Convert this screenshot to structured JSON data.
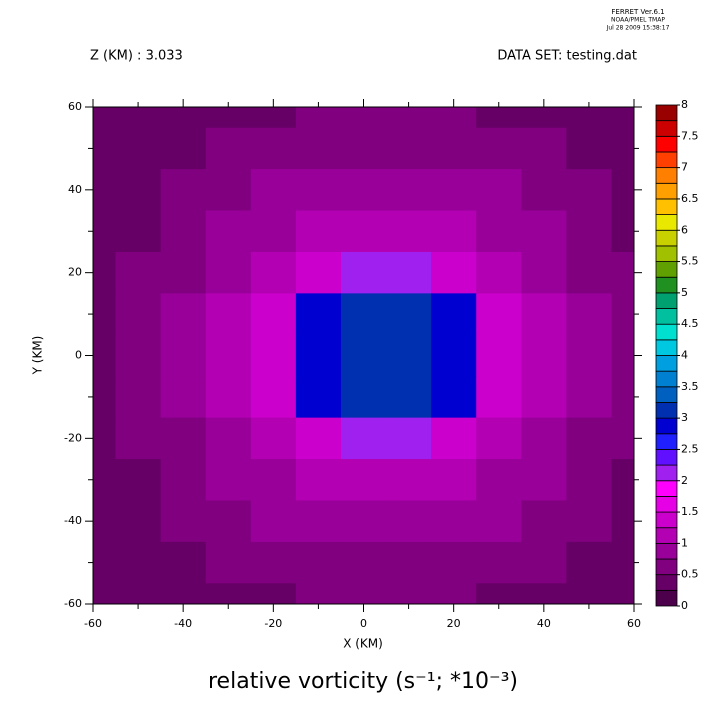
{
  "chart_data": {
    "type": "contour",
    "header": [
      "FERRET  Ver.6.1",
      "NOAA/PMEL TMAP",
      "Jul 28 2009 15:38:17"
    ],
    "subtitle_left": "Z (KM) : 3.033",
    "subtitle_right": "DATA SET: testing.dat",
    "title": "relative vorticity (s⁻¹; *10⁻³)",
    "x_label": "X (KM)",
    "y_label": "Y (KM)",
    "xlim": [
      -60,
      60
    ],
    "ylim": [
      -60,
      60
    ],
    "xticks": [
      -60,
      -40,
      -20,
      0,
      20,
      40,
      60
    ],
    "yticks": [
      -60,
      -40,
      -20,
      0,
      20,
      40,
      60
    ],
    "x": [
      -60,
      -50,
      -40,
      -30,
      -20,
      -10,
      0,
      10,
      20,
      30,
      40,
      50,
      60
    ],
    "y": [
      60,
      50,
      40,
      30,
      20,
      10,
      0,
      -10,
      -20,
      -30,
      -40,
      -50,
      -60
    ],
    "z": [
      [
        0.25,
        0.25,
        0.25,
        0.25,
        0.25,
        0.5,
        0.5,
        0.5,
        0.5,
        0.25,
        0.25,
        0.25,
        0.25
      ],
      [
        0.25,
        0.25,
        0.25,
        0.5,
        0.5,
        0.5,
        0.5,
        0.5,
        0.5,
        0.5,
        0.5,
        0.25,
        0.25
      ],
      [
        0.25,
        0.25,
        0.5,
        0.5,
        0.75,
        0.75,
        0.75,
        0.75,
        0.75,
        0.75,
        0.5,
        0.5,
        0.25
      ],
      [
        0.25,
        0.25,
        0.5,
        0.75,
        0.75,
        1,
        1,
        1,
        1,
        0.75,
        0.75,
        0.5,
        0.25
      ],
      [
        0.25,
        0.5,
        0.5,
        0.75,
        1,
        1.25,
        2,
        2,
        1.25,
        1,
        0.75,
        0.5,
        0.5
      ],
      [
        0.25,
        0.5,
        0.75,
        1,
        1.25,
        2.75,
        3,
        3,
        2.75,
        1.25,
        1,
        0.75,
        0.5
      ],
      [
        0.25,
        0.5,
        0.75,
        1,
        1.25,
        2.75,
        3,
        3,
        2.75,
        1.25,
        1,
        0.75,
        0.5
      ],
      [
        0.25,
        0.5,
        0.75,
        1,
        1.25,
        2.75,
        3,
        3,
        2.75,
        1.25,
        1,
        0.75,
        0.5
      ],
      [
        0.25,
        0.5,
        0.5,
        0.75,
        1,
        1.25,
        2,
        2,
        1.25,
        1,
        0.75,
        0.5,
        0.5
      ],
      [
        0.25,
        0.25,
        0.5,
        0.75,
        0.75,
        1,
        1,
        1,
        1,
        0.75,
        0.75,
        0.5,
        0.25
      ],
      [
        0.25,
        0.25,
        0.5,
        0.5,
        0.75,
        0.75,
        0.75,
        0.75,
        0.75,
        0.75,
        0.5,
        0.5,
        0.25
      ],
      [
        0.25,
        0.25,
        0.25,
        0.5,
        0.5,
        0.5,
        0.5,
        0.5,
        0.5,
        0.5,
        0.5,
        0.25,
        0.25
      ],
      [
        0.25,
        0.25,
        0.25,
        0.25,
        0.25,
        0.5,
        0.5,
        0.5,
        0.5,
        0.25,
        0.25,
        0.25,
        0.25
      ]
    ],
    "levels": [
      0,
      0.25,
      0.5,
      0.75,
      1,
      1.25,
      1.5,
      1.75,
      2,
      2.25,
      2.5,
      2.75,
      3,
      3.25,
      3.5,
      3.75,
      4,
      4.25,
      4.5,
      4.75,
      5,
      5.25,
      5.5,
      5.75,
      6,
      6.25,
      6.5,
      6.75,
      7,
      7.25,
      7.5,
      7.75,
      8
    ],
    "colors": [
      "#4c004c",
      "#660066",
      "#800080",
      "#990099",
      "#b300b3",
      "#cc00cc",
      "#e600e6",
      "#ff00ff",
      "#a020f0",
      "#6010ff",
      "#2020ff",
      "#0000d0",
      "#0030b0",
      "#0060c0",
      "#0080d0",
      "#00a0e0",
      "#00c8e0",
      "#00e0d0",
      "#00c0a0",
      "#00a070",
      "#209020",
      "#60a000",
      "#a0c000",
      "#c8d000",
      "#e8e800",
      "#ffc000",
      "#ffa000",
      "#ff8000",
      "#ff4000",
      "#ff0000",
      "#cc0000",
      "#990000"
    ],
    "zticks": [
      0,
      0.5,
      1,
      1.5,
      2,
      2.5,
      3,
      3.5,
      4,
      4.5,
      5,
      5.5,
      6,
      6.5,
      7,
      7.5,
      8
    ]
  }
}
